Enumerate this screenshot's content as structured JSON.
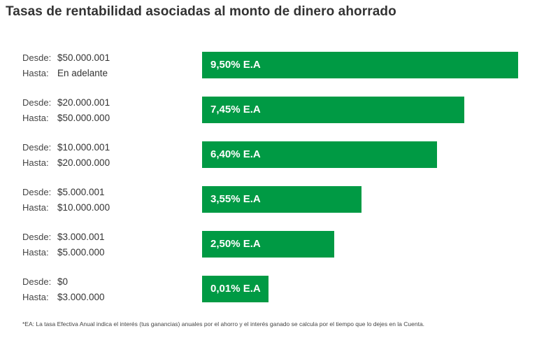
{
  "title": "Tasas de rentabilidad asociadas al monto de dinero ahorrado",
  "colors": {
    "bar": "#009a44",
    "text": "#333333"
  },
  "desde_label": "Desde:",
  "hasta_label": "Hasta:",
  "chart_data": {
    "type": "bar",
    "orientation": "horizontal",
    "value_suffix": "% E.A",
    "categories": [
      {
        "desde": "$50.000.001",
        "hasta": "En adelante"
      },
      {
        "desde": "$20.000.001",
        "hasta": "$50.000.000"
      },
      {
        "desde": "$10.000.001",
        "hasta": "$20.000.000"
      },
      {
        "desde": "$5.000.001",
        "hasta": "$10.000.000"
      },
      {
        "desde": "$3.000.001",
        "hasta": "$5.000.000"
      },
      {
        "desde": "$0",
        "hasta": "$3.000.000"
      }
    ],
    "values": [
      9.5,
      7.45,
      6.4,
      3.55,
      2.5,
      0.01
    ],
    "labels": [
      "9,50% E.A",
      "7,45% E.A",
      "6,40% E.A",
      "3,55% E.A",
      "2,50% E.A",
      "0,01% E.A"
    ]
  },
  "footnote": "*EA: La tasa Efectiva Anual indica el interés (tus ganancias) anuales por el ahorro y el interés ganado se calcula por el tiempo que lo dejes en la Cuenta."
}
